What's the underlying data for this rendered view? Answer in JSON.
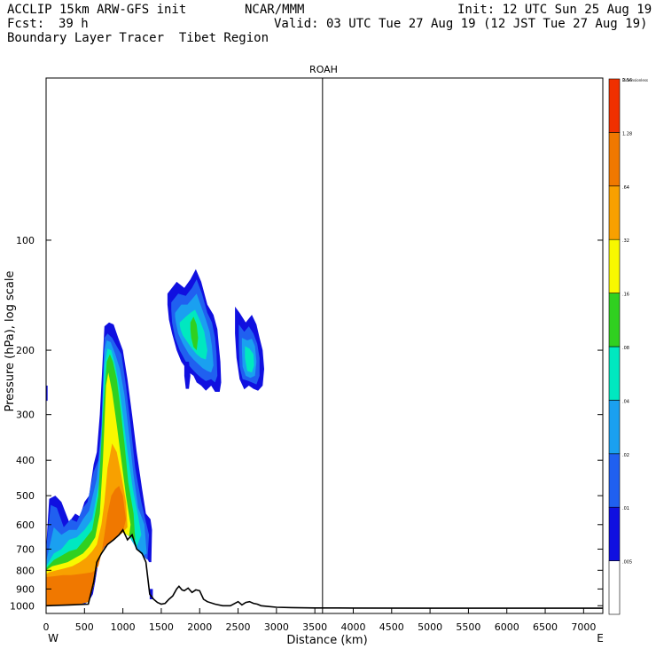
{
  "header": {
    "model": "ACCLIP 15km ARW-GFS init",
    "org": "NCAR/MMM",
    "init": "Init: 12 UTC Sun 25 Aug 19",
    "fcst_label": "Fcst:",
    "fcst_value": "39 h",
    "valid": "Valid: 03 UTC Tue 27 Aug 19 (12 JST Tue 27 Aug 19)",
    "product": "Boundary Layer Tracer  Tibet Region"
  },
  "chart_data": {
    "type": "heatmap",
    "title": "ROAH",
    "xlabel": "Distance (km)",
    "ylabel": "Pressure (hPa), log scale",
    "x_left_label": "W",
    "x_right_label": "E",
    "xlim": [
      0,
      7250
    ],
    "ylim": [
      1050,
      36
    ],
    "y_scale": "log",
    "x_ticks": [
      0,
      500,
      1000,
      1500,
      2000,
      2500,
      3000,
      3500,
      4000,
      4500,
      5000,
      5500,
      6000,
      6500,
      7000
    ],
    "y_ticks": [
      100,
      200,
      300,
      400,
      500,
      600,
      700,
      800,
      900,
      1000
    ],
    "vertical_marker_km": 3600,
    "colorbar": {
      "units_label": "Dimensionless",
      "levels": [
        ".005",
        ".01",
        ".02",
        ".04",
        ".08",
        ".16",
        ".32",
        ".64",
        "1.28",
        "2.56"
      ],
      "colors": [
        "#ffffff",
        "#1010e0",
        "#2060f0",
        "#1aa0f0",
        "#00e8c0",
        "#30d020",
        "#f8f800",
        "#f8a000",
        "#f07800",
        "#f03000"
      ]
    },
    "terrain": {
      "km": [
        0,
        300,
        550,
        620,
        660,
        720,
        800,
        880,
        950,
        1000,
        1060,
        1120,
        1180,
        1250,
        1300,
        1350,
        1400,
        1450,
        1500,
        1550,
        1600,
        1650,
        1700,
        1730,
        1770,
        1800,
        1850,
        1900,
        1950,
        2000,
        2050,
        2100,
        2200,
        2300,
        2400,
        2500,
        2550,
        2600,
        2650,
        2700,
        2750,
        2800,
        2900,
        3000,
        3200,
        3500,
        4000,
        5000,
        6000,
        7000,
        7250
      ],
      "hPa": [
        1000,
        995,
        990,
        860,
        760,
        720,
        680,
        660,
        640,
        620,
        660,
        640,
        700,
        720,
        760,
        930,
        960,
        980,
        990,
        985,
        960,
        940,
        900,
        885,
        905,
        910,
        895,
        920,
        905,
        910,
        960,
        975,
        990,
        1000,
        1000,
        975,
        995,
        980,
        975,
        985,
        990,
        1000,
        1005,
        1010,
        1012,
        1014,
        1015,
        1016,
        1016,
        1016,
        1016
      ]
    },
    "tracer_regions": [
      {
        "level": 1,
        "km": [
          0,
          80,
          180,
          300,
          440,
          500,
          560,
          610,
          640,
          680,
          740,
          800,
          860,
          940,
          1020,
          1080,
          1120,
          1180,
          1240,
          1300,
          1340,
          1370,
          1380,
          1360,
          1300,
          1250,
          1180,
          1120,
          1060,
          1000,
          940,
          880,
          820,
          760,
          700,
          660,
          620,
          560,
          500,
          440,
          380,
          300,
          200,
          120,
          40,
          0
        ],
        "hPa": [
          1000,
          1000,
          998,
          995,
          993,
          990,
          970,
          930,
          860,
          760,
          700,
          680,
          665,
          645,
          625,
          645,
          650,
          690,
          710,
          730,
          760,
          760,
          620,
          580,
          560,
          480,
          380,
          300,
          240,
          200,
          185,
          170,
          168,
          172,
          300,
          380,
          410,
          500,
          520,
          570,
          560,
          590,
          520,
          500,
          510,
          700
        ]
      },
      {
        "level": 2,
        "km": [
          0,
          180,
          400,
          560,
          620,
          680,
          760,
          880,
          1000,
          1080,
          1180,
          1260,
          1320,
          1340,
          1300,
          1240,
          1160,
          1100,
          1040,
          980,
          920,
          860,
          800,
          760,
          720,
          680,
          620,
          540,
          480,
          400,
          320,
          230,
          140,
          60,
          0
        ],
        "hPa": [
          1000,
          998,
          994,
          975,
          880,
          740,
          690,
          660,
          630,
          645,
          700,
          730,
          750,
          640,
          590,
          520,
          420,
          320,
          250,
          205,
          195,
          185,
          180,
          185,
          320,
          400,
          430,
          520,
          540,
          590,
          580,
          610,
          540,
          530,
          700
        ]
      },
      {
        "level": 3,
        "km": [
          0,
          200,
          400,
          560,
          620,
          680,
          760,
          880,
          1000,
          1080,
          1180,
          1260,
          1310,
          1280,
          1200,
          1140,
          1080,
          1020,
          960,
          900,
          840,
          790,
          760,
          720,
          660,
          560,
          480,
          400,
          300,
          200,
          100,
          0
        ],
        "hPa": [
          1000,
          998,
          994,
          975,
          880,
          740,
          690,
          660,
          630,
          645,
          700,
          730,
          720,
          600,
          540,
          440,
          340,
          265,
          225,
          205,
          190,
          188,
          200,
          340,
          450,
          550,
          580,
          620,
          620,
          640,
          610,
          760
        ]
      },
      {
        "level": 4,
        "km": [
          0,
          200,
          400,
          560,
          620,
          680,
          760,
          880,
          1000,
          1080,
          1180,
          1240,
          1200,
          1130,
          1060,
          1000,
          950,
          900,
          850,
          800,
          760,
          700,
          600,
          500,
          400,
          300,
          200,
          100,
          0
        ],
        "hPa": [
          1000,
          998,
          994,
          975,
          880,
          740,
          690,
          660,
          630,
          645,
          690,
          640,
          570,
          480,
          380,
          300,
          250,
          220,
          200,
          198,
          220,
          450,
          580,
          620,
          650,
          660,
          700,
          720,
          780
        ]
      },
      {
        "level": 5,
        "km": [
          0,
          200,
          400,
          560,
          620,
          680,
          760,
          880,
          1000,
          1080,
          1160,
          1140,
          1070,
          1020,
          970,
          920,
          870,
          830,
          790,
          740,
          680,
          600,
          500,
          400,
          300,
          200,
          100,
          0
        ],
        "hPa": [
          1000,
          998,
          994,
          975,
          880,
          740,
          690,
          660,
          630,
          645,
          660,
          560,
          460,
          360,
          290,
          240,
          215,
          205,
          215,
          300,
          500,
          620,
          660,
          700,
          710,
          730,
          750,
          790
        ]
      },
      {
        "level": 6,
        "km": [
          0,
          200,
          400,
          560,
          620,
          680,
          760,
          880,
          1000,
          1080,
          1100,
          1040,
          980,
          920,
          860,
          810,
          780,
          740,
          700,
          640,
          560,
          480,
          380,
          280,
          180,
          80,
          0
        ],
        "hPa": [
          1000,
          998,
          994,
          975,
          880,
          740,
          690,
          660,
          630,
          645,
          600,
          500,
          400,
          320,
          260,
          230,
          250,
          400,
          560,
          650,
          690,
          720,
          740,
          760,
          770,
          780,
          800
        ]
      },
      {
        "level": 7,
        "km": [
          0,
          200,
          400,
          560,
          620,
          680,
          760,
          880,
          1000,
          1060,
          1040,
          980,
          920,
          860,
          800,
          760,
          720,
          660,
          600,
          520,
          440,
          340,
          240,
          140,
          40,
          0
        ],
        "hPa": [
          1000,
          998,
          994,
          975,
          880,
          740,
          690,
          660,
          630,
          610,
          520,
          440,
          380,
          360,
          420,
          520,
          600,
          680,
          710,
          740,
          760,
          780,
          790,
          800,
          810,
          820
        ]
      },
      {
        "level": 8,
        "km": [
          0,
          200,
          400,
          560,
          620,
          680,
          760,
          880,
          1000,
          1040,
          1000,
          950,
          900,
          850,
          800,
          760,
          720,
          680,
          640,
          600,
          520,
          420,
          320,
          220,
          120,
          0
        ],
        "hPa": [
          1000,
          998,
          994,
          975,
          880,
          740,
          690,
          660,
          630,
          580,
          500,
          470,
          480,
          500,
          560,
          640,
          720,
          780,
          800,
          810,
          815,
          820,
          825,
          825,
          830,
          835
        ]
      },
      {
        "level": 1,
        "km": [
          1580,
          1700,
          1800,
          1880,
          1950,
          2020,
          2100,
          2180,
          2230,
          2250,
          2270,
          2280,
          2260,
          2200,
          2150,
          2080,
          2020,
          1960,
          1920,
          1860,
          1760,
          1700,
          1640,
          1600,
          1580
        ],
        "hPa": [
          140,
          130,
          135,
          128,
          120,
          130,
          150,
          160,
          175,
          195,
          215,
          245,
          260,
          260,
          250,
          258,
          250,
          245,
          235,
          230,
          215,
          200,
          180,
          165,
          150
        ]
      },
      {
        "level": 2,
        "km": [
          1630,
          1720,
          1820,
          1900,
          1960,
          2030,
          2100,
          2160,
          2200,
          2220,
          2230,
          2200,
          2150,
          2080,
          2020,
          1960,
          1900,
          1820,
          1740,
          1680,
          1640,
          1630
        ],
        "hPa": [
          148,
          140,
          142,
          135,
          128,
          140,
          158,
          168,
          185,
          205,
          235,
          245,
          240,
          243,
          238,
          232,
          225,
          215,
          200,
          185,
          168,
          155
        ]
      },
      {
        "level": 3,
        "km": [
          1680,
          1760,
          1840,
          1900,
          1960,
          2020,
          2080,
          2130,
          2160,
          2180,
          2150,
          2100,
          2040,
          1980,
          1920,
          1860,
          1780,
          1720,
          1690,
          1680
        ],
        "hPa": [
          158,
          150,
          150,
          145,
          140,
          152,
          165,
          178,
          195,
          220,
          230,
          228,
          224,
          218,
          212,
          205,
          192,
          180,
          168,
          162
        ]
      },
      {
        "level": 4,
        "km": [
          1740,
          1820,
          1880,
          1940,
          2000,
          2060,
          2100,
          2080,
          2020,
          1960,
          1900,
          1840,
          1780,
          1750,
          1740
        ],
        "hPa": [
          168,
          162,
          158,
          155,
          165,
          178,
          200,
          212,
          210,
          205,
          198,
          190,
          182,
          175,
          170
        ]
      },
      {
        "level": 5,
        "km": [
          1880,
          1920,
          1960,
          1980,
          1960,
          1920,
          1890,
          1880
        ],
        "hPa": [
          168,
          162,
          170,
          185,
          200,
          196,
          185,
          175
        ]
      },
      {
        "level": 1,
        "km": [
          1800,
          1860,
          1880,
          1860,
          1820,
          1800
        ],
        "hPa": [
          215,
          215,
          235,
          255,
          255,
          235
        ]
      },
      {
        "level": 1,
        "km": [
          2460,
          2520,
          2600,
          2680,
          2740,
          2780,
          2820,
          2840,
          2820,
          2760,
          2700,
          2640,
          2580,
          2520,
          2480,
          2460
        ],
        "hPa": [
          152,
          158,
          168,
          160,
          170,
          185,
          200,
          225,
          250,
          258,
          255,
          250,
          256,
          240,
          210,
          180
        ]
      },
      {
        "level": 2,
        "km": [
          2510,
          2580,
          2640,
          2700,
          2750,
          2780,
          2780,
          2740,
          2680,
          2620,
          2560,
          2520,
          2510
        ],
        "hPa": [
          170,
          178,
          172,
          180,
          192,
          210,
          235,
          248,
          245,
          242,
          240,
          222,
          195
        ]
      },
      {
        "level": 3,
        "km": [
          2550,
          2620,
          2680,
          2720,
          2740,
          2720,
          2660,
          2600,
          2560,
          2550
        ],
        "hPa": [
          185,
          188,
          186,
          195,
          215,
          235,
          238,
          235,
          222,
          200
        ]
      },
      {
        "level": 4,
        "km": [
          2590,
          2650,
          2700,
          2710,
          2680,
          2620,
          2590
        ],
        "hPa": [
          195,
          198,
          205,
          220,
          230,
          228,
          210
        ]
      },
      {
        "level": 1,
        "km": [
          0,
          20,
          20,
          0
        ],
        "hPa": [
          250,
          250,
          275,
          275
        ]
      },
      {
        "level": 1,
        "km": [
          1350,
          1390,
          1390,
          1350
        ],
        "hPa": [
          900,
          900,
          960,
          960
        ]
      }
    ]
  }
}
